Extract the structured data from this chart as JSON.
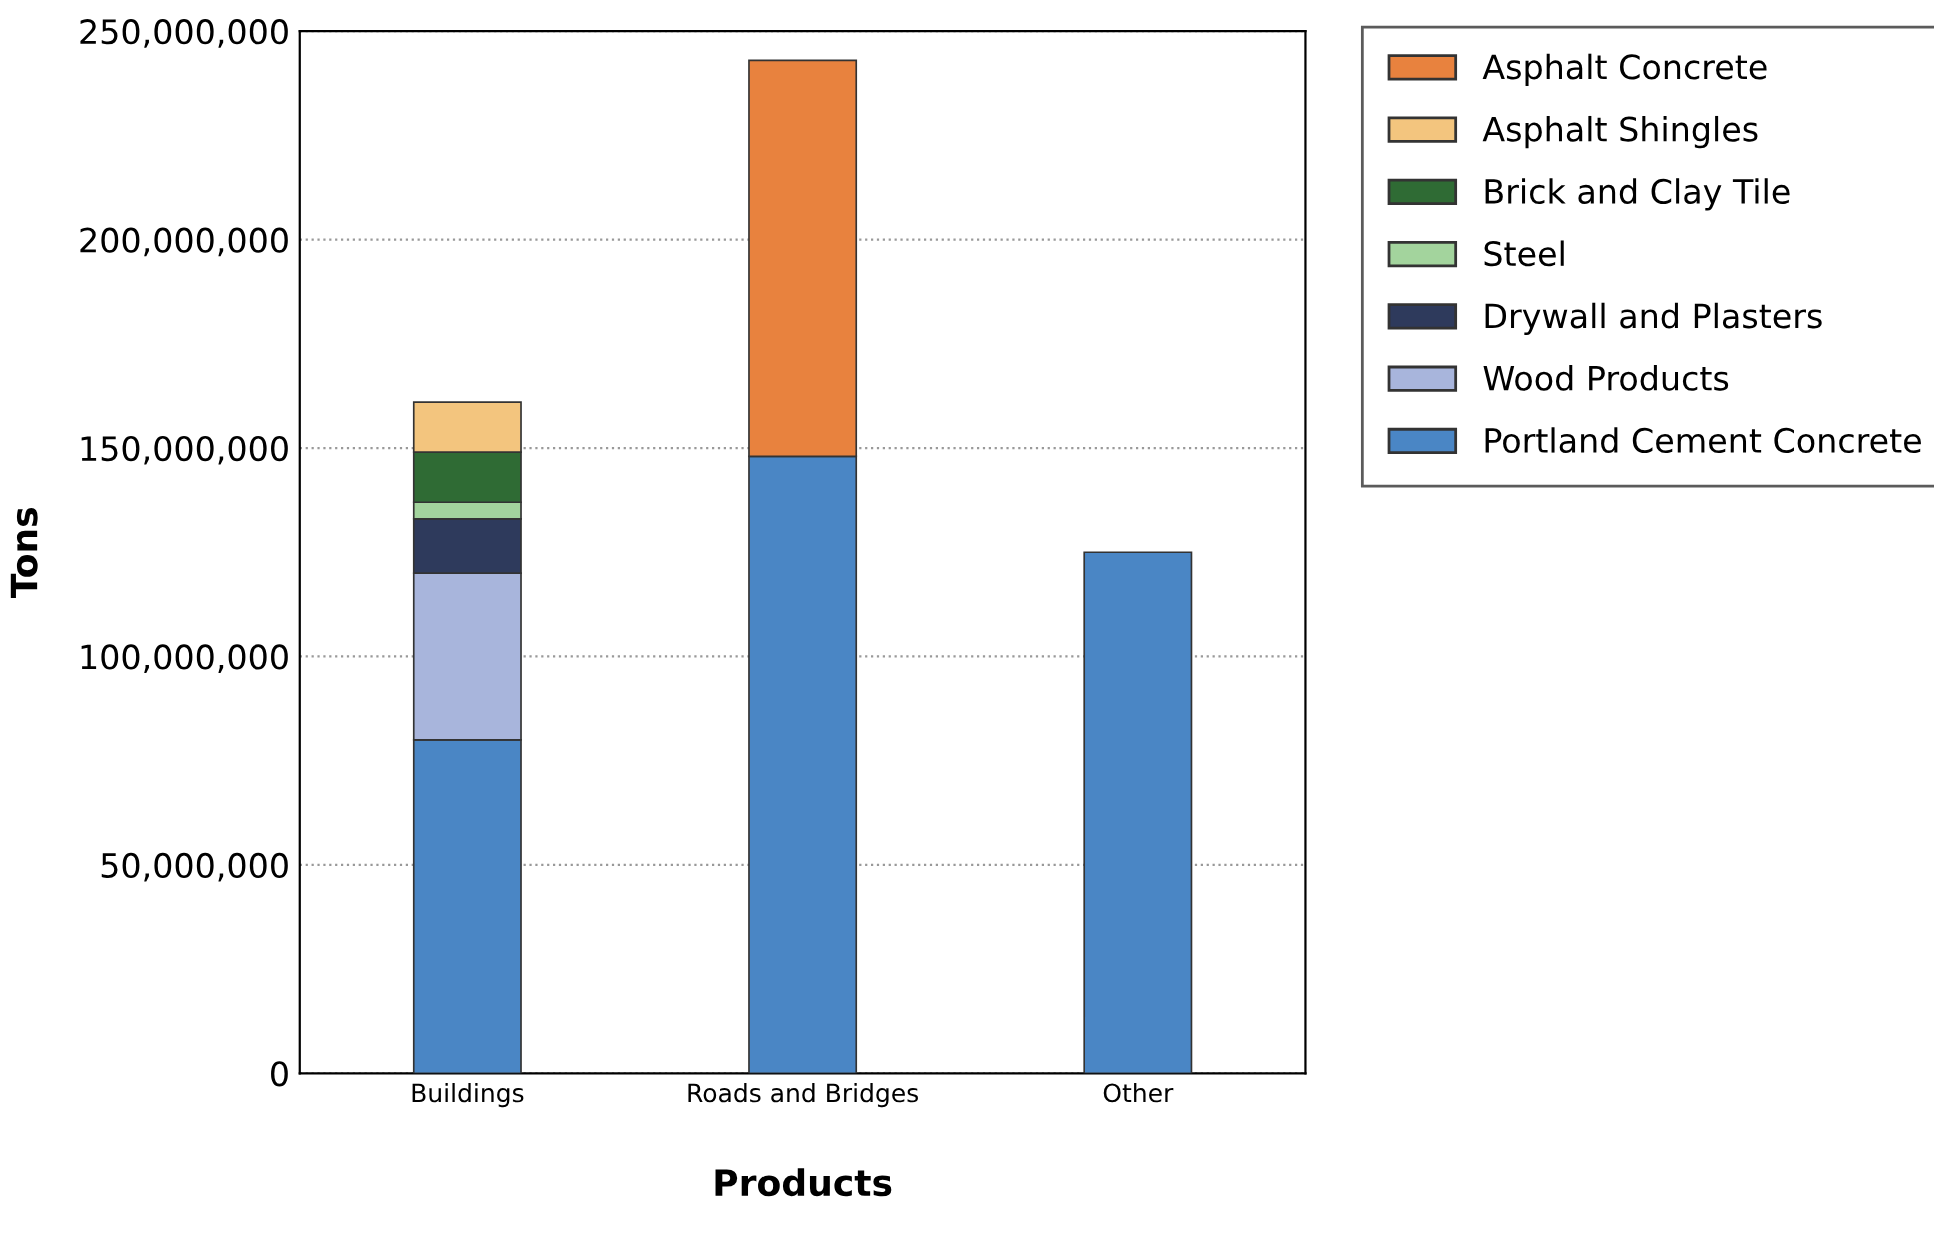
{
  "chart_data": {
    "type": "bar",
    "stacked": true,
    "xlabel": "Products",
    "ylabel": "Tons",
    "categories": [
      "Buildings",
      "Roads and Bridges",
      "Other"
    ],
    "series": [
      {
        "name": "Portland Cement Concrete",
        "color": "#4a86c5",
        "values": [
          80000000,
          148000000,
          125000000
        ]
      },
      {
        "name": "Wood Products",
        "color": "#a8b5dc",
        "values": [
          40000000,
          null,
          null
        ]
      },
      {
        "name": "Drywall and Plasters",
        "color": "#2e3a5c",
        "values": [
          13000000,
          null,
          null
        ]
      },
      {
        "name": "Steel",
        "color": "#a3d49d",
        "values": [
          4000000,
          null,
          null
        ]
      },
      {
        "name": "Brick and Clay Tile",
        "color": "#2f6b34",
        "values": [
          12000000,
          null,
          null
        ]
      },
      {
        "name": "Asphalt Shingles",
        "color": "#f3c57e",
        "values": [
          12000000,
          null,
          null
        ]
      },
      {
        "name": "Asphalt Concrete",
        "color": "#e8823e",
        "values": [
          null,
          95000000,
          null
        ]
      }
    ],
    "ylim": [
      0,
      250000000
    ],
    "yticks": [
      {
        "value": 0,
        "label": "0"
      },
      {
        "value": 50000000,
        "label": "50,000,000"
      },
      {
        "value": 100000000,
        "label": "100,000,000"
      },
      {
        "value": 150000000,
        "label": "150,000,000"
      },
      {
        "value": 200000000,
        "label": "200,000,000"
      },
      {
        "value": 250000000,
        "label": "250,000,000"
      }
    ],
    "grid": "y",
    "legend": "top right"
  }
}
